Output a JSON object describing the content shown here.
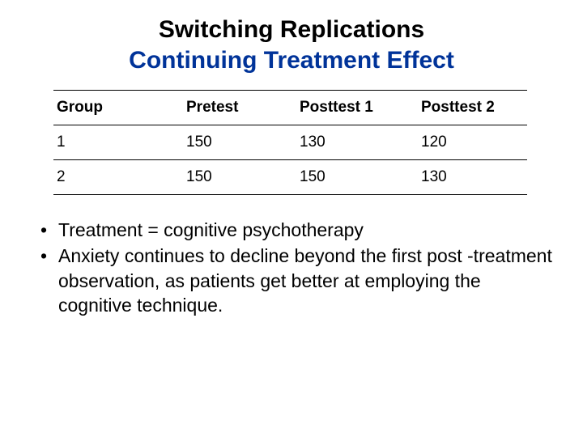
{
  "title": {
    "line1": "Switching Replications",
    "line2": "Continuing Treatment Effect"
  },
  "table": {
    "headers": [
      "Group",
      "Pretest",
      "Posttest 1",
      "Posttest 2"
    ],
    "rows": [
      [
        "1",
        "150",
        "130",
        "120"
      ],
      [
        "2",
        "150",
        "150",
        "130"
      ]
    ]
  },
  "bullets": [
    "Treatment = cognitive psychotherapy",
    "Anxiety continues to decline beyond the first post -treatment observation, as patients get better at employing the cognitive technique."
  ],
  "colors": {
    "title_line2": "#003399",
    "text": "#000000",
    "background": "#ffffff"
  }
}
